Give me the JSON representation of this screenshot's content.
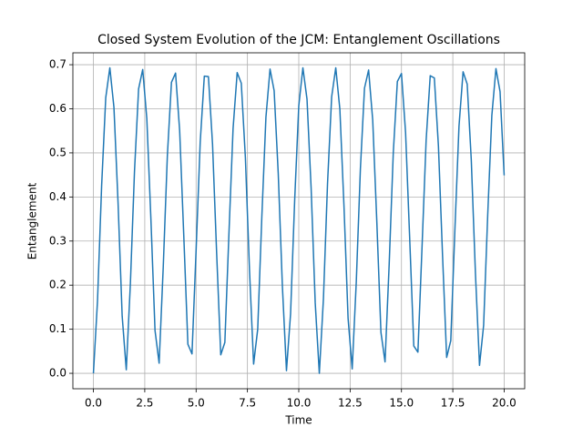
{
  "chart_data": {
    "type": "line",
    "title": "Closed System Evolution of the JCM: Entanglement Oscillations",
    "x_label": "Time",
    "y_label": "Entanglement",
    "x": [
      0,
      0.2,
      0.4,
      0.6,
      0.8,
      1,
      1.2,
      1.4,
      1.6,
      1.8,
      2,
      2.2,
      2.4,
      2.6,
      2.8,
      3,
      3.2,
      3.4,
      3.6,
      3.8,
      4,
      4.2,
      4.4,
      4.6,
      4.8,
      5,
      5.2,
      5.4,
      5.6,
      5.8,
      6,
      6.2,
      6.4,
      6.6,
      6.8,
      7,
      7.2,
      7.4,
      7.6,
      7.8,
      8,
      8.2,
      8.4,
      8.6,
      8.8,
      9,
      9.2,
      9.4,
      9.6,
      9.8,
      10,
      10.2,
      10.4,
      10.6,
      10.8,
      11,
      11.2,
      11.4,
      11.6,
      11.8,
      12,
      12.2,
      12.4,
      12.6,
      12.8,
      13,
      13.2,
      13.4,
      13.6,
      13.8,
      14,
      14.2,
      14.4,
      14.6,
      14.8,
      15,
      15.2,
      15.4,
      15.6,
      15.8,
      16,
      16.2,
      16.4,
      16.6,
      16.8,
      17,
      17.2,
      17.4,
      17.6,
      17.8,
      18,
      18.2,
      18.4,
      18.6,
      18.8,
      19,
      19.2,
      19.4,
      19.6,
      19.8,
      20
    ],
    "series": [
      {
        "color": "#1f77b4",
        "values": [
          0,
          0.165,
          0.425,
          0.625,
          0.693,
          0.603,
          0.387,
          0.13,
          0.008,
          0.203,
          0.458,
          0.645,
          0.689,
          0.578,
          0.349,
          0.097,
          0.023,
          0.241,
          0.493,
          0.66,
          0.681,
          0.55,
          0.312,
          0.066,
          0.044,
          0.279,
          0.524,
          0.674,
          0.673,
          0.52,
          0.273,
          0.042,
          0.07,
          0.318,
          0.555,
          0.682,
          0.658,
          0.489,
          0.234,
          0.021,
          0.1,
          0.354,
          0.581,
          0.69,
          0.641,
          0.453,
          0.199,
          0.006,
          0.135,
          0.393,
          0.607,
          0.693,
          0.622,
          0.421,
          0.16,
          0,
          0.169,
          0.431,
          0.627,
          0.693,
          0.599,
          0.38,
          0.125,
          0.01,
          0.208,
          0.464,
          0.647,
          0.688,
          0.574,
          0.343,
          0.093,
          0.026,
          0.246,
          0.499,
          0.662,
          0.68,
          0.546,
          0.306,
          0.062,
          0.048,
          0.285,
          0.528,
          0.675,
          0.67,
          0.515,
          0.267,
          0.036,
          0.074,
          0.324,
          0.56,
          0.684,
          0.656,
          0.483,
          0.228,
          0.018,
          0.109,
          0.36,
          0.585,
          0.691,
          0.639,
          0.449
        ]
      }
    ],
    "xlim": [
      -1,
      21
    ],
    "ylim": [
      -0.035,
      0.727
    ],
    "xticks": [
      {
        "value": 0,
        "label": "0.0"
      },
      2.5,
      {
        "value": 5,
        "label": "5.0"
      },
      7.5,
      {
        "value": 10,
        "label": "10.0"
      },
      12.5,
      {
        "value": 15,
        "label": "15.0"
      },
      17.5,
      {
        "value": 20,
        "label": "20.0"
      }
    ],
    "yticks": [
      {
        "value": 0,
        "label": "0.0"
      },
      0.1,
      0.2,
      0.3,
      0.4,
      0.5,
      0.6,
      0.7
    ],
    "grid": true
  }
}
